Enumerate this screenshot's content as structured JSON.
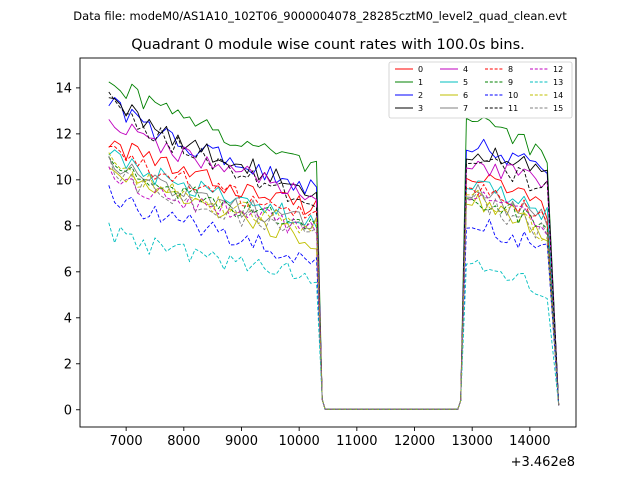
{
  "chart_data": {
    "type": "line",
    "suptitle": "Data file: modeM0/AS1A10_102T06_9000004078_28285cztM0_level2_quad_clean.evt",
    "title": "Quadrant 0 module wise count rates with 100.0s bins.",
    "xlabel": "",
    "ylabel": "",
    "x_offset_label": "+3.462e8",
    "xlim": [
      6200,
      14800
    ],
    "ylim": [
      -0.75,
      15.3
    ],
    "x_ticks": [
      7000,
      8000,
      9000,
      10000,
      11000,
      12000,
      13000,
      14000
    ],
    "y_ticks": [
      0,
      2,
      4,
      6,
      8,
      10,
      12,
      14
    ],
    "grid": false,
    "legend_location": "upper-right",
    "legend_columns": 4,
    "segments": [
      {
        "start": 6700,
        "end": 10400
      },
      {
        "start": 12800,
        "end": 14500
      }
    ],
    "segment_values": {
      "seg1_end": 0.45,
      "gap": 0.02,
      "seg2_start": 0.4,
      "seg2_end": 0.2
    },
    "series": [
      {
        "name": "0",
        "color": "#ff0000",
        "dash": "solid",
        "level1": [
          11.8,
          8.8
        ],
        "level2": [
          10.5,
          8.6
        ]
      },
      {
        "name": "1",
        "color": "#008000",
        "dash": "solid",
        "level1": [
          14.6,
          10.6
        ],
        "level2": [
          13.1,
          10.9
        ]
      },
      {
        "name": "2",
        "color": "#0000ff",
        "dash": "solid",
        "level1": [
          13.5,
          9.6
        ],
        "level2": [
          11.7,
          10.3
        ]
      },
      {
        "name": "3",
        "color": "#000000",
        "dash": "solid",
        "level1": [
          13.8,
          9.5
        ],
        "level2": [
          11.3,
          10.3
        ]
      },
      {
        "name": "4",
        "color": "#bf00bf",
        "dash": "solid",
        "level1": [
          12.8,
          9.3
        ],
        "level2": [
          10.9,
          9.7
        ]
      },
      {
        "name": "5",
        "color": "#00bfbf",
        "dash": "solid",
        "level1": [
          11.2,
          8.2
        ],
        "level2": [
          10.0,
          8.4
        ]
      },
      {
        "name": "6",
        "color": "#bfbf00",
        "dash": "solid",
        "level1": [
          10.6,
          7.4
        ],
        "level2": [
          9.3,
          7.7
        ]
      },
      {
        "name": "7",
        "color": "#808080",
        "dash": "solid",
        "level1": [
          11.0,
          8.0
        ],
        "level2": [
          9.6,
          8.2
        ]
      },
      {
        "name": "8",
        "color": "#ff0000",
        "dash": "dashed",
        "level1": [
          11.4,
          8.4
        ],
        "level2": [
          10.0,
          8.2
        ]
      },
      {
        "name": "9",
        "color": "#008000",
        "dash": "dashed",
        "level1": [
          10.9,
          7.9
        ],
        "level2": [
          9.5,
          7.8
        ]
      },
      {
        "name": "10",
        "color": "#0000ff",
        "dash": "dashed",
        "level1": [
          9.6,
          6.6
        ],
        "level2": [
          8.2,
          7.0
        ]
      },
      {
        "name": "11",
        "color": "#000000",
        "dash": "dashed",
        "level1": [
          13.6,
          8.9
        ],
        "level2": [
          11.0,
          9.6
        ]
      },
      {
        "name": "12",
        "color": "#bf00bf",
        "dash": "dashed",
        "level1": [
          10.3,
          7.9
        ],
        "level2": [
          9.4,
          8.0
        ]
      },
      {
        "name": "13",
        "color": "#00bfbf",
        "dash": "dashed",
        "level1": [
          7.8,
          5.9
        ],
        "level2": [
          6.6,
          5.1
        ]
      },
      {
        "name": "14",
        "color": "#bfbf00",
        "dash": "dashed",
        "level1": [
          10.8,
          7.9
        ],
        "level2": [
          9.6,
          7.6
        ]
      },
      {
        "name": "15",
        "color": "#808080",
        "dash": "dashed",
        "level1": [
          10.6,
          7.6
        ],
        "level2": [
          9.4,
          7.6
        ]
      }
    ]
  }
}
